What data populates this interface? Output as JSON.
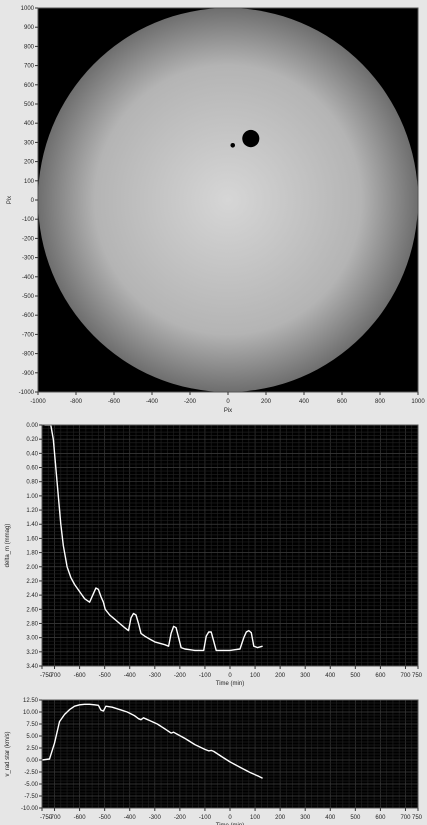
{
  "chart_data": [
    {
      "type": "scatter",
      "xlabel": "Pix",
      "ylabel": "Pix",
      "xlim": [
        -1000,
        1000
      ],
      "ylim": [
        -1000,
        1000
      ],
      "xticks": [
        -1000,
        -800,
        -600,
        -400,
        -200,
        0,
        200,
        400,
        600,
        800,
        1000
      ],
      "yticks": [
        1000,
        900,
        800,
        700,
        600,
        500,
        400,
        300,
        200,
        100,
        0,
        -100,
        -200,
        -300,
        -400,
        -500,
        -600,
        -700,
        -800,
        -900,
        -1000
      ],
      "disk": {
        "cx": 0,
        "cy": 0,
        "r": 1000,
        "center_color": "#d6d6d6",
        "edge_color": "#6e6e6e"
      },
      "spots": [
        {
          "x": 120,
          "y": 320,
          "r": 45
        },
        {
          "x": 25,
          "y": 285,
          "r": 12
        }
      ],
      "grid": false
    },
    {
      "type": "line",
      "xlabel": "Time (min)",
      "ylabel": "delta_m (mmag)",
      "xlim": [
        -750,
        750
      ],
      "ylim": [
        3.4,
        0.0
      ],
      "y_inverted": true,
      "xticks": [
        -750,
        -700,
        -600,
        -500,
        -400,
        -300,
        -200,
        -100,
        0,
        100,
        200,
        300,
        400,
        500,
        600,
        700,
        750
      ],
      "yticks": [
        "0.00",
        "0.20",
        "0.40",
        "0.60",
        "0.80",
        "1.00",
        "1.20",
        "1.40",
        "1.60",
        "1.80",
        "2.00",
        "2.20",
        "2.40",
        "2.60",
        "2.80",
        "3.00",
        "3.20",
        "3.40"
      ],
      "grid": true,
      "line_color": "#ffffff",
      "x": [
        -740,
        -715,
        -705,
        -695,
        -685,
        -675,
        -665,
        -650,
        -635,
        -620,
        -600,
        -580,
        -560,
        -545,
        -535,
        -525,
        -515,
        -505,
        -498,
        -480,
        -460,
        -440,
        -420,
        -405,
        -395,
        -385,
        -375,
        -365,
        -355,
        -340,
        -320,
        -300,
        -280,
        -260,
        -245,
        -235,
        -225,
        -215,
        -205,
        -195,
        -180,
        -160,
        -140,
        -120,
        -105,
        -95,
        -85,
        -75,
        -65,
        -55,
        -40,
        -20,
        0,
        20,
        40,
        55,
        65,
        75,
        85,
        95,
        110,
        130
      ],
      "y": [
        0.0,
        0.0,
        0.2,
        0.6,
        1.0,
        1.4,
        1.7,
        2.0,
        2.15,
        2.25,
        2.35,
        2.45,
        2.5,
        2.38,
        2.3,
        2.32,
        2.42,
        2.5,
        2.6,
        2.68,
        2.74,
        2.8,
        2.86,
        2.9,
        2.72,
        2.66,
        2.68,
        2.8,
        2.94,
        2.98,
        3.02,
        3.06,
        3.08,
        3.1,
        3.12,
        2.94,
        2.84,
        2.86,
        3.0,
        3.14,
        3.16,
        3.17,
        3.18,
        3.18,
        3.18,
        2.98,
        2.92,
        2.92,
        3.05,
        3.18,
        3.18,
        3.18,
        3.18,
        3.17,
        3.16,
        3.0,
        2.92,
        2.9,
        2.93,
        3.12,
        3.14,
        3.12
      ]
    },
    {
      "type": "line",
      "xlabel": "Time (min)",
      "ylabel": "v_rad star (km/s)",
      "xlim": [
        -750,
        750
      ],
      "ylim": [
        -10.0,
        12.5
      ],
      "xticks": [
        -750,
        -700,
        -600,
        -500,
        -400,
        -300,
        -200,
        -100,
        0,
        100,
        200,
        300,
        400,
        500,
        600,
        700,
        750
      ],
      "yticks": [
        "12.50",
        "10.00",
        "7.50",
        "5.00",
        "2.50",
        "0.00",
        "-2.50",
        "-5.00",
        "-7.50",
        "-10.00"
      ],
      "grid": true,
      "line_color": "#ffffff",
      "x": [
        -750,
        -720,
        -700,
        -680,
        -660,
        -640,
        -620,
        -600,
        -580,
        -560,
        -540,
        -525,
        -515,
        -505,
        -495,
        -470,
        -440,
        -410,
        -380,
        -365,
        -355,
        -345,
        -320,
        -290,
        -260,
        -235,
        -225,
        -215,
        -180,
        -140,
        -100,
        -85,
        -75,
        -65,
        -30,
        0,
        40,
        80,
        110,
        130
      ],
      "y": [
        0.0,
        0.2,
        3.5,
        8.0,
        9.5,
        10.5,
        11.2,
        11.5,
        11.6,
        11.6,
        11.5,
        11.4,
        10.4,
        10.2,
        11.2,
        11.0,
        10.5,
        10.0,
        9.2,
        8.6,
        8.4,
        8.8,
        8.2,
        7.5,
        6.5,
        5.6,
        5.8,
        5.5,
        4.5,
        3.2,
        2.2,
        1.9,
        2.0,
        1.8,
        0.6,
        -0.4,
        -1.5,
        -2.6,
        -3.3,
        -3.8
      ]
    }
  ]
}
